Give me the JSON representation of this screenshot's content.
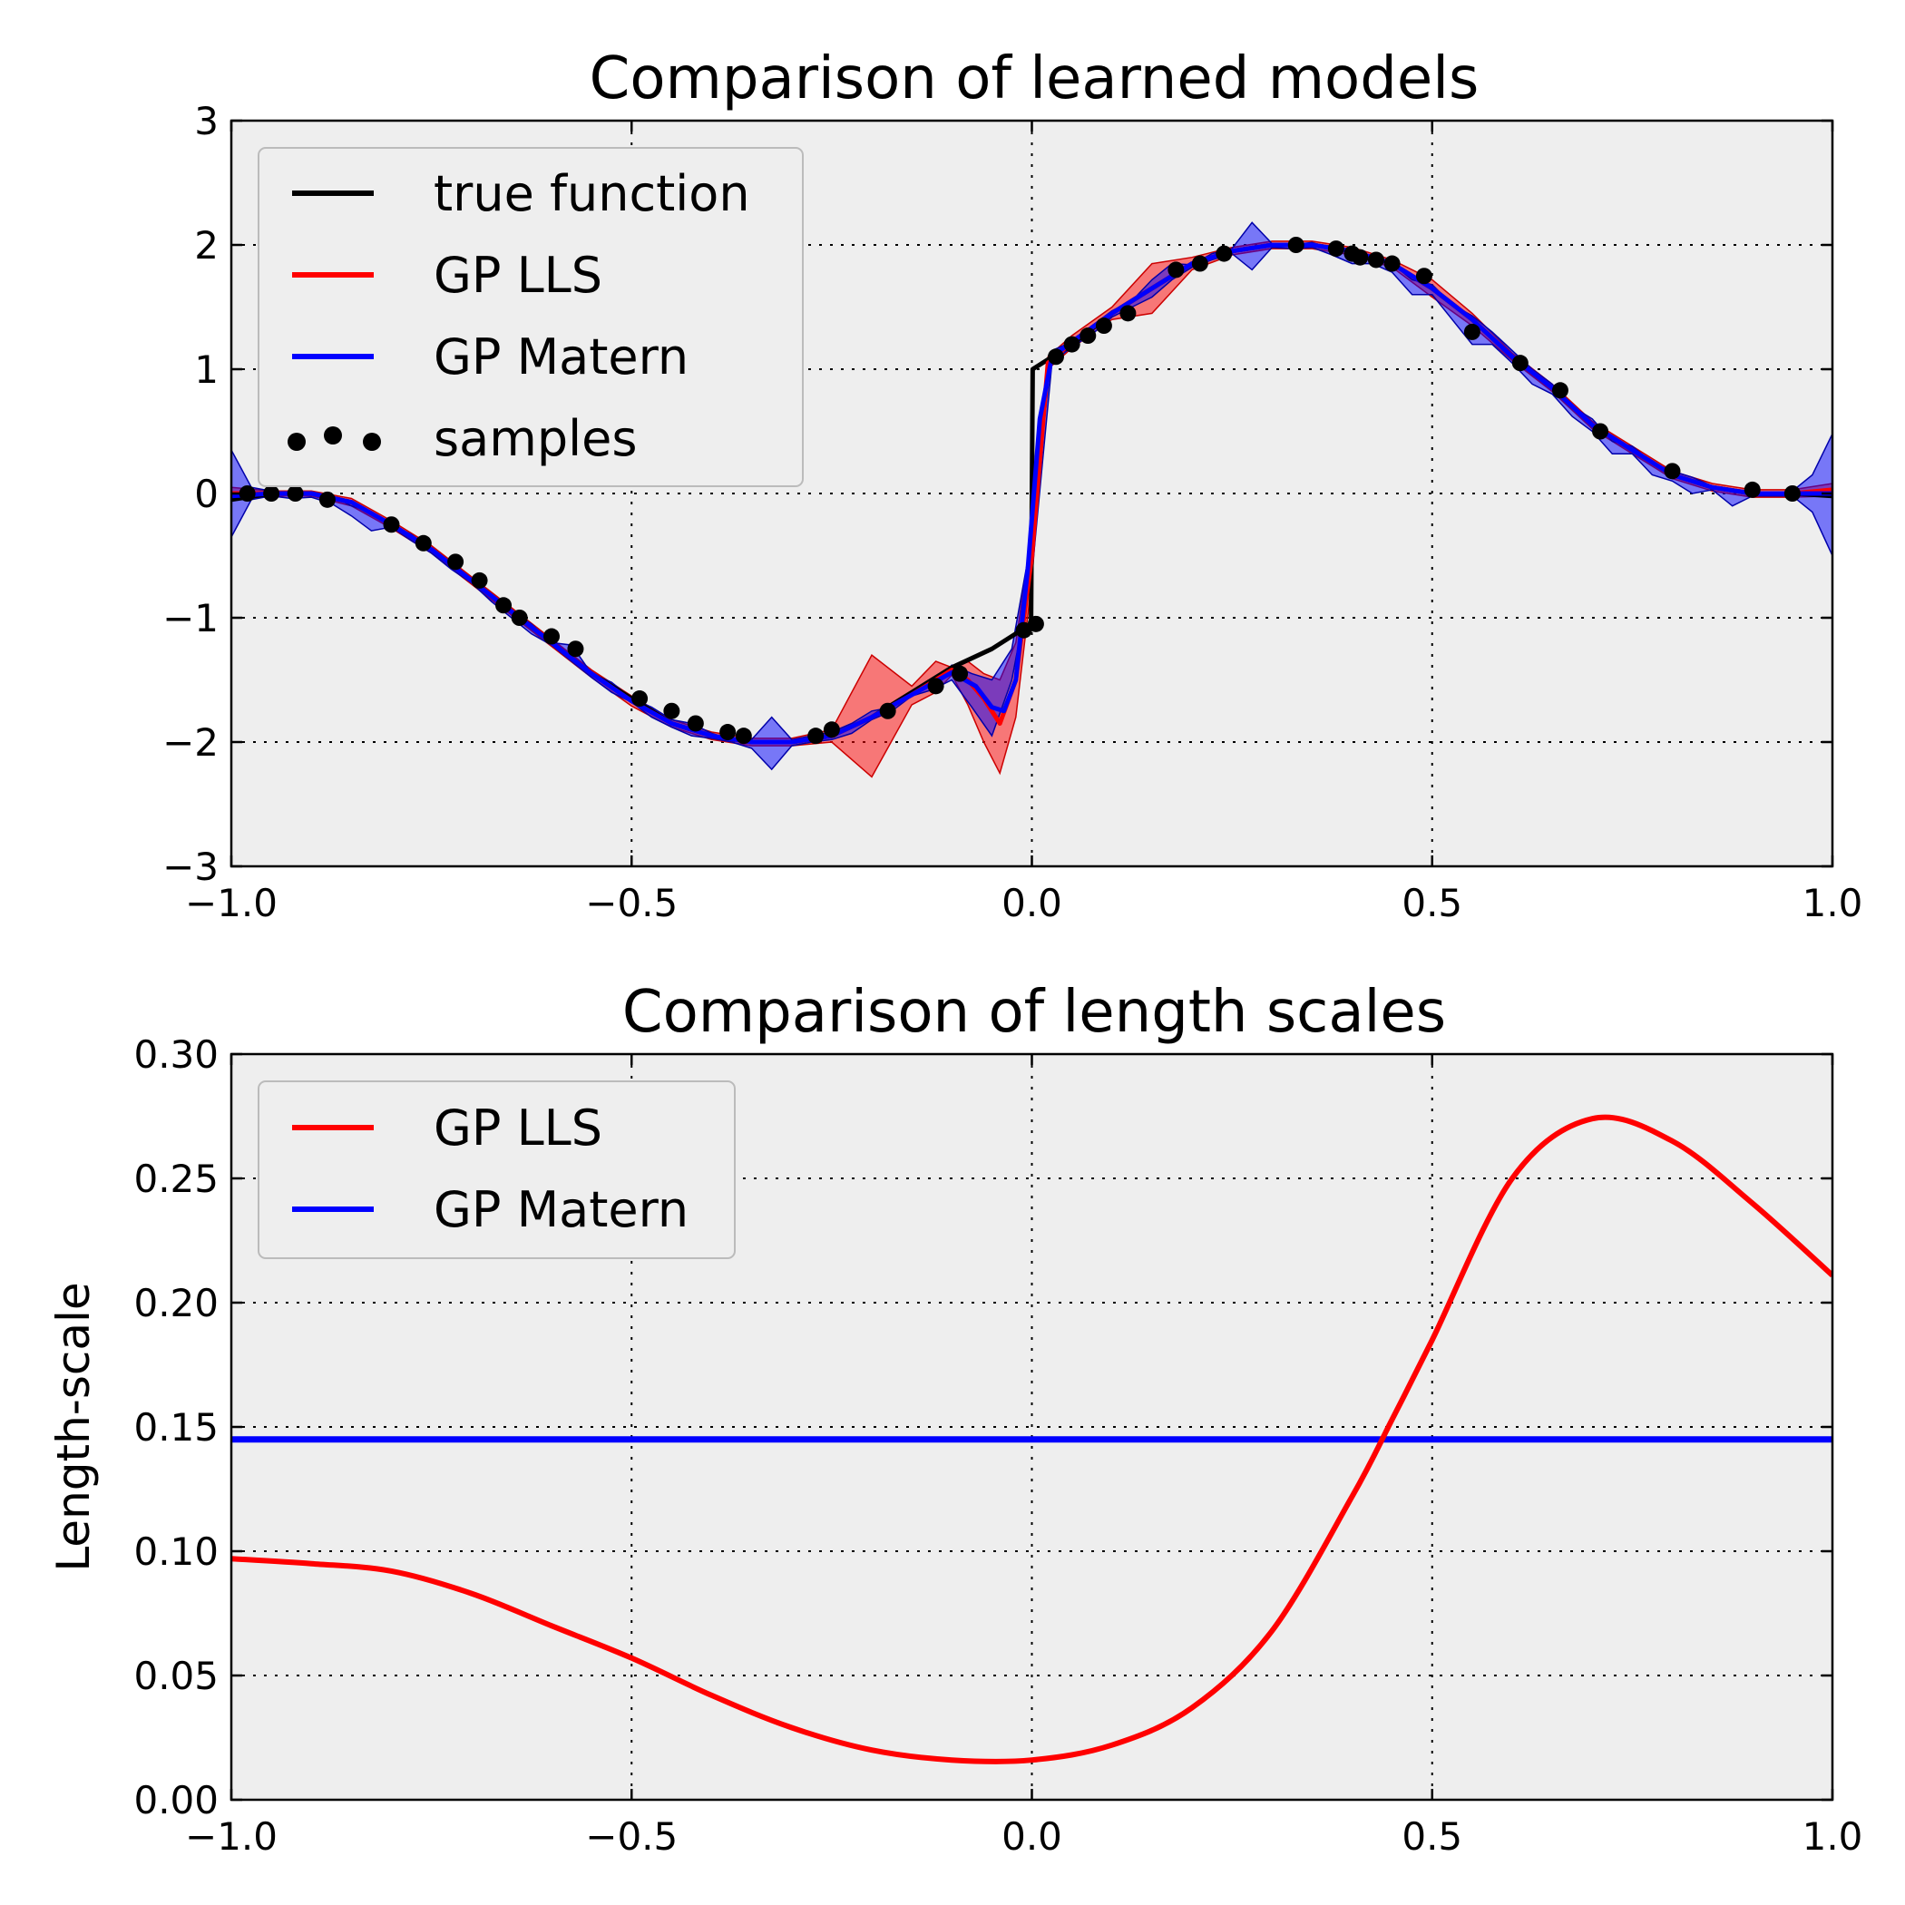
{
  "colors": {
    "true_function": "#000000",
    "gp_lls": "#ff0000",
    "gp_matern": "#0000ff",
    "samples": "#000000",
    "plot_background": "#eeeeee"
  },
  "chart_data": [
    {
      "type": "line",
      "title": "Comparison of learned models",
      "xlabel": "",
      "ylabel": "",
      "xlim": [
        -1.0,
        1.0
      ],
      "ylim": [
        -3,
        3
      ],
      "xticks": [
        "−1.0",
        "−0.5",
        "0.0",
        "0.5",
        "1.0"
      ],
      "xtick_values": [
        -1.0,
        -0.5,
        0.0,
        0.5,
        1.0
      ],
      "yticks": [
        "−3",
        "−2",
        "−1",
        "0",
        "1",
        "2",
        "3"
      ],
      "ytick_values": [
        -3,
        -2,
        -1,
        0,
        1,
        2,
        3
      ],
      "grid": true,
      "legend_position": "top-left",
      "legend": [
        "true function",
        "GP LLS",
        "GP Matern",
        "samples"
      ],
      "true_function": {
        "x": [
          -1.0,
          -0.95,
          -0.9,
          -0.85,
          -0.8,
          -0.75,
          -0.7,
          -0.65,
          -0.6,
          -0.55,
          -0.5,
          -0.45,
          -0.4,
          -0.35,
          -0.3,
          -0.25,
          -0.2,
          -0.15,
          -0.1,
          -0.05,
          -0.001,
          0.001,
          0.05,
          0.1,
          0.15,
          0.2,
          0.25,
          0.3,
          0.35,
          0.4,
          0.45,
          0.5,
          0.55,
          0.6,
          0.65,
          0.7,
          0.75,
          0.8,
          0.85,
          0.9,
          0.95,
          1.0
        ],
        "y": [
          -0.05,
          0.0,
          0.0,
          -0.07,
          -0.25,
          -0.45,
          -0.7,
          -0.95,
          -1.2,
          -1.45,
          -1.65,
          -1.85,
          -1.95,
          -2.0,
          -2.0,
          -1.95,
          -1.8,
          -1.6,
          -1.4,
          -1.25,
          -1.05,
          1.0,
          1.2,
          1.45,
          1.65,
          1.85,
          1.95,
          2.0,
          2.0,
          1.95,
          1.85,
          1.65,
          1.4,
          1.1,
          0.85,
          0.55,
          0.35,
          0.15,
          0.05,
          0.0,
          0.0,
          -0.02
        ]
      },
      "gp_lls": {
        "x": [
          -1.0,
          -0.95,
          -0.9,
          -0.85,
          -0.8,
          -0.75,
          -0.7,
          -0.65,
          -0.6,
          -0.55,
          -0.5,
          -0.45,
          -0.4,
          -0.35,
          -0.3,
          -0.25,
          -0.2,
          -0.15,
          -0.12,
          -0.1,
          -0.08,
          -0.06,
          -0.04,
          -0.02,
          0.0,
          0.02,
          0.05,
          0.1,
          0.15,
          0.2,
          0.25,
          0.3,
          0.35,
          0.4,
          0.45,
          0.5,
          0.55,
          0.6,
          0.65,
          0.7,
          0.75,
          0.8,
          0.85,
          0.9,
          0.95,
          1.0
        ],
        "y": [
          0.0,
          0.0,
          0.0,
          -0.07,
          -0.25,
          -0.45,
          -0.7,
          -0.95,
          -1.2,
          -1.45,
          -1.67,
          -1.85,
          -1.95,
          -2.0,
          -2.0,
          -1.95,
          -1.8,
          -1.62,
          -1.5,
          -1.42,
          -1.5,
          -1.65,
          -1.85,
          -1.5,
          -0.5,
          1.05,
          1.22,
          1.45,
          1.65,
          1.85,
          1.95,
          2.0,
          2.0,
          1.95,
          1.85,
          1.65,
          1.4,
          1.1,
          0.85,
          0.55,
          0.35,
          0.15,
          0.05,
          0.0,
          0.0,
          0.03
        ]
      },
      "gp_lls_band": {
        "x": [
          -1.0,
          -0.95,
          -0.9,
          -0.85,
          -0.8,
          -0.75,
          -0.7,
          -0.65,
          -0.6,
          -0.55,
          -0.5,
          -0.45,
          -0.4,
          -0.35,
          -0.3,
          -0.25,
          -0.2,
          -0.15,
          -0.12,
          -0.1,
          -0.08,
          -0.06,
          -0.04,
          -0.02,
          0.0,
          0.02,
          0.05,
          0.1,
          0.15,
          0.2,
          0.25,
          0.3,
          0.35,
          0.4,
          0.45,
          0.5,
          0.55,
          0.6,
          0.65,
          0.7,
          0.75,
          0.8,
          0.85,
          0.9,
          0.95,
          1.0
        ],
        "upper": [
          0.05,
          0.02,
          0.02,
          -0.04,
          -0.22,
          -0.42,
          -0.67,
          -0.92,
          -1.17,
          -1.42,
          -1.63,
          -1.82,
          -1.92,
          -1.97,
          -1.97,
          -1.9,
          -1.3,
          -1.55,
          -1.35,
          -1.4,
          -1.35,
          -1.45,
          -1.5,
          -1.2,
          -0.3,
          1.1,
          1.27,
          1.5,
          1.85,
          1.9,
          1.98,
          2.03,
          2.03,
          1.98,
          1.88,
          1.72,
          1.45,
          1.13,
          0.88,
          0.58,
          0.38,
          0.18,
          0.08,
          0.03,
          0.03,
          0.08
        ],
        "lower": [
          -0.05,
          -0.02,
          -0.02,
          -0.1,
          -0.28,
          -0.48,
          -0.73,
          -0.98,
          -1.23,
          -1.48,
          -1.71,
          -1.88,
          -1.98,
          -2.03,
          -2.03,
          -2.0,
          -2.28,
          -1.7,
          -1.6,
          -1.46,
          -1.7,
          -2.0,
          -2.25,
          -1.8,
          -0.7,
          1.0,
          1.17,
          1.4,
          1.45,
          1.8,
          1.92,
          1.97,
          1.97,
          1.92,
          1.82,
          1.58,
          1.35,
          1.07,
          0.82,
          0.52,
          0.32,
          0.12,
          0.02,
          -0.03,
          -0.03,
          -0.02
        ]
      },
      "gp_matern": {
        "x": [
          -1.0,
          -0.95,
          -0.9,
          -0.85,
          -0.8,
          -0.75,
          -0.7,
          -0.65,
          -0.6,
          -0.55,
          -0.5,
          -0.45,
          -0.4,
          -0.35,
          -0.3,
          -0.25,
          -0.2,
          -0.15,
          -0.1,
          -0.07,
          -0.05,
          -0.035,
          -0.02,
          -0.005,
          0.01,
          0.025,
          0.05,
          0.1,
          0.15,
          0.2,
          0.25,
          0.3,
          0.35,
          0.4,
          0.45,
          0.5,
          0.55,
          0.6,
          0.65,
          0.7,
          0.75,
          0.8,
          0.85,
          0.9,
          0.95,
          1.0
        ],
        "y": [
          -0.02,
          0.0,
          0.0,
          -0.07,
          -0.25,
          -0.45,
          -0.7,
          -0.95,
          -1.2,
          -1.45,
          -1.67,
          -1.85,
          -1.95,
          -2.0,
          -2.0,
          -1.95,
          -1.8,
          -1.62,
          -1.44,
          -1.55,
          -1.72,
          -1.75,
          -1.5,
          -0.6,
          0.6,
          1.1,
          1.22,
          1.45,
          1.65,
          1.85,
          1.95,
          2.0,
          2.0,
          1.95,
          1.85,
          1.65,
          1.4,
          1.1,
          0.85,
          0.55,
          0.35,
          0.15,
          0.05,
          0.0,
          0.0,
          0.0
        ]
      },
      "gp_matern_band": {
        "x": [
          -1.0,
          -0.975,
          -0.95,
          -0.925,
          -0.9,
          -0.875,
          -0.85,
          -0.825,
          -0.8,
          -0.775,
          -0.75,
          -0.725,
          -0.7,
          -0.675,
          -0.65,
          -0.625,
          -0.6,
          -0.575,
          -0.55,
          -0.525,
          -0.5,
          -0.475,
          -0.45,
          -0.425,
          -0.4,
          -0.375,
          -0.35,
          -0.325,
          -0.3,
          -0.275,
          -0.25,
          -0.225,
          -0.2,
          -0.175,
          -0.15,
          -0.125,
          -0.1,
          -0.075,
          -0.05,
          -0.025,
          0.0,
          0.025,
          0.05,
          0.075,
          0.1,
          0.125,
          0.15,
          0.175,
          0.2,
          0.225,
          0.25,
          0.275,
          0.3,
          0.325,
          0.35,
          0.375,
          0.4,
          0.425,
          0.45,
          0.475,
          0.5,
          0.525,
          0.55,
          0.575,
          0.6,
          0.625,
          0.65,
          0.675,
          0.7,
          0.725,
          0.75,
          0.775,
          0.8,
          0.825,
          0.85,
          0.875,
          0.9,
          0.925,
          0.95,
          0.975,
          1.0
        ],
        "upper": [
          0.35,
          0.05,
          0.02,
          0.0,
          0.0,
          -0.02,
          -0.1,
          -0.15,
          -0.25,
          -0.33,
          -0.45,
          -0.56,
          -0.7,
          -0.83,
          -0.95,
          -1.05,
          -1.2,
          -1.22,
          -1.45,
          -1.52,
          -1.65,
          -1.72,
          -1.82,
          -1.85,
          -1.93,
          -1.98,
          -1.98,
          -1.8,
          -1.98,
          -1.95,
          -1.92,
          -1.85,
          -1.75,
          -1.72,
          -1.6,
          -1.55,
          -1.38,
          -1.45,
          -1.5,
          -1.25,
          -0.35,
          1.15,
          1.22,
          1.35,
          1.47,
          1.55,
          1.72,
          1.85,
          1.84,
          1.93,
          1.97,
          2.18,
          2.01,
          2.0,
          2.02,
          1.97,
          1.95,
          1.88,
          1.85,
          1.72,
          1.68,
          1.52,
          1.43,
          1.3,
          1.15,
          1.0,
          0.88,
          0.7,
          0.6,
          0.42,
          0.38,
          0.25,
          0.18,
          0.13,
          0.06,
          0.03,
          0.02,
          0.0,
          0.02,
          0.15,
          0.48
        ],
        "lower": [
          -0.35,
          -0.05,
          -0.02,
          -0.04,
          -0.03,
          -0.08,
          -0.18,
          -0.3,
          -0.27,
          -0.38,
          -0.48,
          -0.61,
          -0.72,
          -0.87,
          -1.0,
          -1.13,
          -1.22,
          -1.35,
          -1.48,
          -1.6,
          -1.68,
          -1.8,
          -1.88,
          -1.95,
          -1.97,
          -2.0,
          -2.05,
          -2.22,
          -2.03,
          -2.0,
          -1.98,
          -1.93,
          -1.82,
          -1.75,
          -1.63,
          -1.58,
          -1.5,
          -1.72,
          -1.95,
          -1.5,
          -0.65,
          1.05,
          1.18,
          1.28,
          1.42,
          1.5,
          1.58,
          1.72,
          1.82,
          1.88,
          1.93,
          1.8,
          1.98,
          1.97,
          1.98,
          1.92,
          1.85,
          1.85,
          1.78,
          1.6,
          1.6,
          1.4,
          1.2,
          1.2,
          1.05,
          0.88,
          0.8,
          0.62,
          0.5,
          0.32,
          0.32,
          0.15,
          0.1,
          0.0,
          0.03,
          -0.1,
          -0.02,
          -0.02,
          -0.02,
          -0.15,
          -0.5
        ]
      },
      "samples": {
        "x": [
          -0.98,
          -0.95,
          -0.92,
          -0.88,
          -0.8,
          -0.76,
          -0.72,
          -0.69,
          -0.66,
          -0.64,
          -0.6,
          -0.57,
          -0.49,
          -0.45,
          -0.42,
          -0.38,
          -0.36,
          -0.27,
          -0.25,
          -0.18,
          -0.12,
          -0.09,
          -0.01,
          0.005,
          0.03,
          0.05,
          0.07,
          0.09,
          0.12,
          0.18,
          0.21,
          0.24,
          0.33,
          0.38,
          0.4,
          0.41,
          0.43,
          0.45,
          0.49,
          0.55,
          0.61,
          0.66,
          0.71,
          0.8,
          0.9,
          0.95
        ],
        "y": [
          0.0,
          0.0,
          0.0,
          -0.05,
          -0.25,
          -0.4,
          -0.55,
          -0.7,
          -0.9,
          -1.0,
          -1.15,
          -1.25,
          -1.65,
          -1.75,
          -1.85,
          -1.92,
          -1.95,
          -1.95,
          -1.9,
          -1.75,
          -1.55,
          -1.45,
          -1.1,
          -1.05,
          1.1,
          1.2,
          1.27,
          1.35,
          1.45,
          1.8,
          1.85,
          1.93,
          2.0,
          1.97,
          1.93,
          1.9,
          1.88,
          1.85,
          1.75,
          1.3,
          1.05,
          0.83,
          0.5,
          0.18,
          0.03,
          0.0
        ]
      }
    },
    {
      "type": "line",
      "title": "Comparison of length scales",
      "xlabel": "",
      "ylabel": "Length-scale",
      "xlim": [
        -1.0,
        1.0
      ],
      "ylim": [
        0.0,
        0.3
      ],
      "xticks": [
        "−1.0",
        "−0.5",
        "0.0",
        "0.5",
        "1.0"
      ],
      "xtick_values": [
        -1.0,
        -0.5,
        0.0,
        0.5,
        1.0
      ],
      "yticks": [
        "0.00",
        "0.05",
        "0.10",
        "0.15",
        "0.20",
        "0.25",
        "0.30"
      ],
      "ytick_values": [
        0.0,
        0.05,
        0.1,
        0.15,
        0.2,
        0.25,
        0.3
      ],
      "grid": true,
      "legend_position": "top-left",
      "legend": [
        "GP LLS",
        "GP Matern"
      ],
      "series": [
        {
          "name": "GP LLS",
          "x": [
            -1.0,
            -0.9,
            -0.8,
            -0.7,
            -0.6,
            -0.5,
            -0.4,
            -0.3,
            -0.2,
            -0.1,
            0.0,
            0.1,
            0.2,
            0.3,
            0.4,
            0.45,
            0.5,
            0.6,
            0.7,
            0.8,
            0.9,
            1.0
          ],
          "y": [
            0.097,
            0.095,
            0.092,
            0.083,
            0.07,
            0.057,
            0.042,
            0.029,
            0.02,
            0.016,
            0.016,
            0.022,
            0.037,
            0.068,
            0.122,
            0.153,
            0.185,
            0.25,
            0.274,
            0.265,
            0.24,
            0.211
          ]
        },
        {
          "name": "GP Matern",
          "x": [
            -1.0,
            1.0
          ],
          "y": [
            0.145,
            0.145
          ]
        }
      ]
    }
  ]
}
